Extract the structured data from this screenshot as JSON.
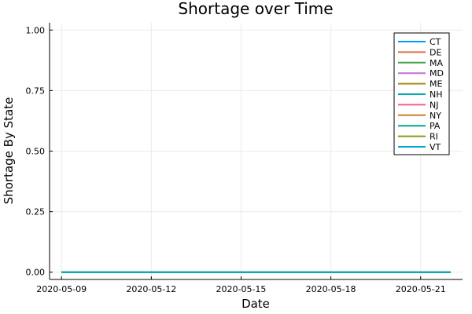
{
  "chart_data": {
    "type": "line",
    "title": "Shortage over Time",
    "xlabel": "Date",
    "ylabel": "Shortage By State",
    "x": [
      "2020-05-09",
      "2020-05-10",
      "2020-05-11",
      "2020-05-12",
      "2020-05-13",
      "2020-05-14",
      "2020-05-15",
      "2020-05-16",
      "2020-05-17",
      "2020-05-18",
      "2020-05-19",
      "2020-05-20",
      "2020-05-21",
      "2020-05-22"
    ],
    "xticks": [
      "2020-05-09",
      "2020-05-12",
      "2020-05-15",
      "2020-05-18",
      "2020-05-21"
    ],
    "ylim": [
      0,
      1
    ],
    "yticks": [
      "0.00",
      "0.25",
      "0.50",
      "0.75",
      "1.00"
    ],
    "grid": true,
    "legend_position": "top-right",
    "series": [
      {
        "name": "CT",
        "color": "#009af9",
        "values": [
          0,
          0,
          0,
          0,
          0,
          0,
          0,
          0,
          0,
          0,
          0,
          0,
          0,
          0
        ]
      },
      {
        "name": "DE",
        "color": "#e26f46",
        "values": [
          0,
          0,
          0,
          0,
          0,
          0,
          0,
          0,
          0,
          0,
          0,
          0,
          0,
          0
        ]
      },
      {
        "name": "MA",
        "color": "#3da44d",
        "values": [
          0,
          0,
          0,
          0,
          0,
          0,
          0,
          0,
          0,
          0,
          0,
          0,
          0,
          0
        ]
      },
      {
        "name": "MD",
        "color": "#c271d2",
        "values": [
          0,
          0,
          0,
          0,
          0,
          0,
          0,
          0,
          0,
          0,
          0,
          0,
          0,
          0
        ]
      },
      {
        "name": "ME",
        "color": "#ac8e18",
        "values": [
          0,
          0,
          0,
          0,
          0,
          0,
          0,
          0,
          0,
          0,
          0,
          0,
          0,
          0
        ]
      },
      {
        "name": "NH",
        "color": "#00a9ad",
        "values": [
          0,
          0,
          0,
          0,
          0,
          0,
          0,
          0,
          0,
          0,
          0,
          0,
          0,
          0
        ]
      },
      {
        "name": "NJ",
        "color": "#ed5e93",
        "values": [
          0,
          0,
          0,
          0,
          0,
          0,
          0,
          0,
          0,
          0,
          0,
          0,
          0,
          0
        ]
      },
      {
        "name": "NY",
        "color": "#c68225",
        "values": [
          0,
          0,
          0,
          0,
          0,
          0,
          0,
          0,
          0,
          0,
          0,
          0,
          0,
          0
        ]
      },
      {
        "name": "PA",
        "color": "#00a98d",
        "values": [
          0,
          0,
          0,
          0,
          0,
          0,
          0,
          0,
          0,
          0,
          0,
          0,
          0,
          0
        ]
      },
      {
        "name": "RI",
        "color": "#8e971d",
        "values": [
          0,
          0,
          0,
          0,
          0,
          0,
          0,
          0,
          0,
          0,
          0,
          0,
          0,
          0
        ]
      },
      {
        "name": "VT",
        "color": "#00a8cb",
        "values": [
          0,
          0,
          0,
          0,
          0,
          0,
          0,
          0,
          0,
          0,
          0,
          0,
          0,
          0
        ]
      }
    ]
  }
}
